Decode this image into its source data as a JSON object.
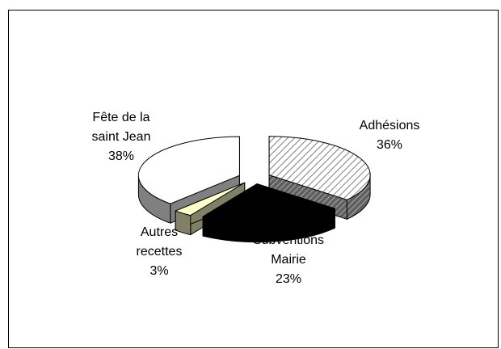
{
  "chart_data": {
    "type": "pie3d",
    "categories": [
      "Adhésions",
      "Subventions Mairie",
      "Autres recettes",
      "Fête de la saint Jean"
    ],
    "values": [
      36,
      23,
      3,
      38
    ],
    "value_labels": [
      "36%",
      "23%",
      "3%",
      "38%"
    ],
    "colors": [
      "#c0c0c0",
      "#000000",
      "#ffffcc",
      "#ffffff"
    ],
    "hatched": [
      true,
      false,
      false,
      false
    ]
  }
}
